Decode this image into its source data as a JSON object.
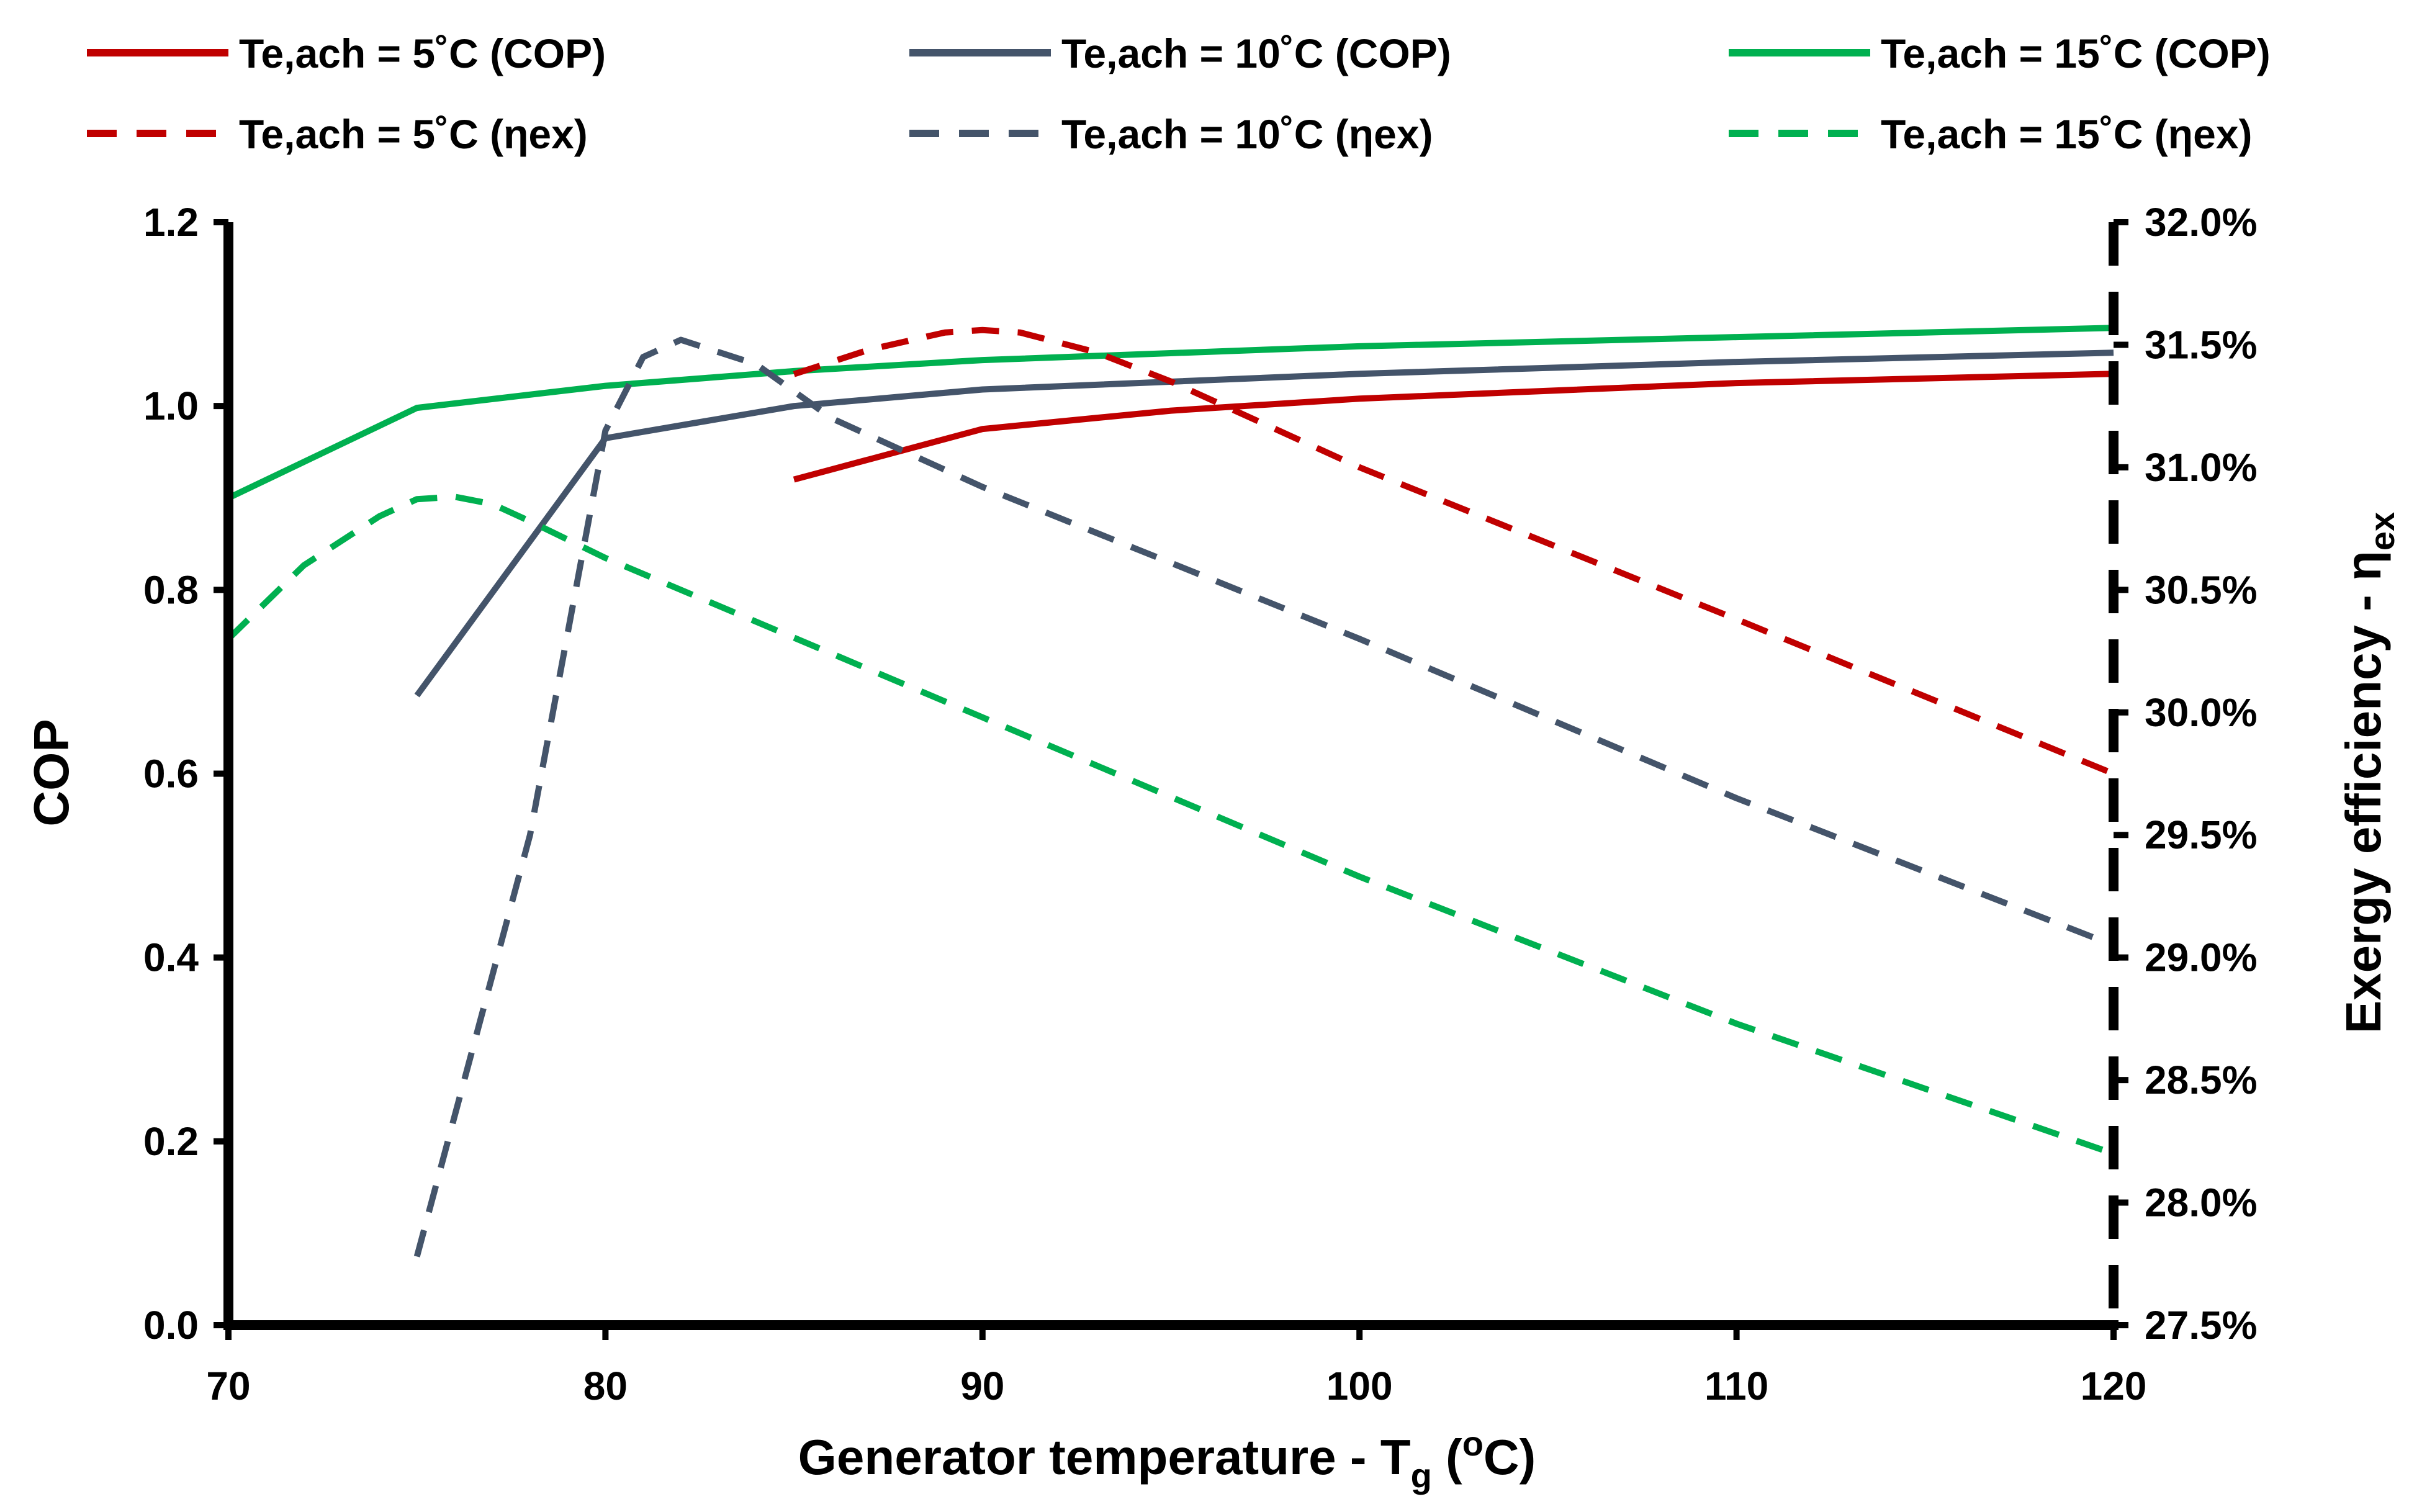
{
  "chart_data": {
    "type": "line",
    "title": "",
    "xlabel": "Generator temperature - T",
    "xlabel_sub": "g",
    "xlabel_unit_open": " (",
    "xlabel_unit_sup": "o",
    "xlabel_unit_close": "C)",
    "ylabel": "COP",
    "y2label": "Exergy efficiency - η",
    "y2label_sub": "ex",
    "xlim": [
      70,
      120
    ],
    "ylim": [
      0,
      1.2
    ],
    "y2lim": [
      27.5,
      32.0
    ],
    "x_ticks": [
      "70",
      "80",
      "90",
      "100",
      "110",
      "120"
    ],
    "x_tick_values": [
      70,
      80,
      90,
      100,
      110,
      120
    ],
    "y_ticks": [
      "0.0",
      "0.2",
      "0.4",
      "0.6",
      "0.8",
      "1.0",
      "1.2"
    ],
    "y_tick_values": [
      0,
      0.2,
      0.4,
      0.6,
      0.8,
      1.0,
      1.2
    ],
    "y2_ticks": [
      "27.5%",
      "28.0%",
      "28.5%",
      "29.0%",
      "29.5%",
      "30.0%",
      "30.5%",
      "31.0%",
      "31.5%",
      "32.0%"
    ],
    "y2_tick_values": [
      27.5,
      28.0,
      28.5,
      29.0,
      29.5,
      30.0,
      30.5,
      31.0,
      31.5,
      32.0
    ],
    "legend_position": "top",
    "series": [
      {
        "name": "Te,ach =  5˚C (COP)",
        "axis": "left",
        "style": "solid",
        "color": "#c00000",
        "x": [
          85,
          90,
          95,
          100,
          110,
          120
        ],
        "y": [
          0.92,
          0.975,
          0.995,
          1.008,
          1.025,
          1.035
        ]
      },
      {
        "name": "Te,ach = 10˚C (COP)",
        "axis": "left",
        "style": "solid",
        "color": "#44546a",
        "x": [
          75,
          80,
          85,
          90,
          100,
          110,
          120
        ],
        "y": [
          0.685,
          0.965,
          1.0,
          1.018,
          1.035,
          1.048,
          1.058
        ]
      },
      {
        "name": "Te,ach = 15˚C (COP)",
        "axis": "left",
        "style": "solid",
        "color": "#00b050",
        "x": [
          70,
          75,
          80,
          85,
          90,
          100,
          110,
          120
        ],
        "y": [
          0.9,
          0.998,
          1.022,
          1.038,
          1.05,
          1.065,
          1.075,
          1.085
        ]
      },
      {
        "name": "Te,ach =  5˚C (ηex)",
        "axis": "right",
        "style": "dashed",
        "color": "#c00000",
        "x": [
          85,
          87,
          89,
          90,
          91,
          93,
          95,
          100,
          110,
          120
        ],
        "y": [
          31.38,
          31.48,
          31.55,
          31.56,
          31.55,
          31.47,
          31.35,
          31.0,
          30.38,
          29.75
        ]
      },
      {
        "name": "Te,ach = 10˚C (ηex)",
        "axis": "right",
        "style": "dashed",
        "color": "#44546a",
        "x": [
          75,
          78,
          80,
          81,
          82,
          84,
          86,
          90,
          100,
          110,
          120
        ],
        "y": [
          27.78,
          29.5,
          31.15,
          31.45,
          31.52,
          31.42,
          31.2,
          30.92,
          30.3,
          29.65,
          29.05
        ]
      },
      {
        "name": "Te,ach = 15˚C (ηex)",
        "axis": "right",
        "style": "dashed",
        "color": "#00b050",
        "x": [
          70,
          72,
          74,
          75,
          76,
          77,
          78,
          80,
          90,
          100,
          110,
          120
        ],
        "y": [
          30.3,
          30.6,
          30.8,
          30.87,
          30.88,
          30.85,
          30.78,
          30.63,
          29.98,
          29.33,
          28.73,
          28.2
        ]
      }
    ]
  }
}
